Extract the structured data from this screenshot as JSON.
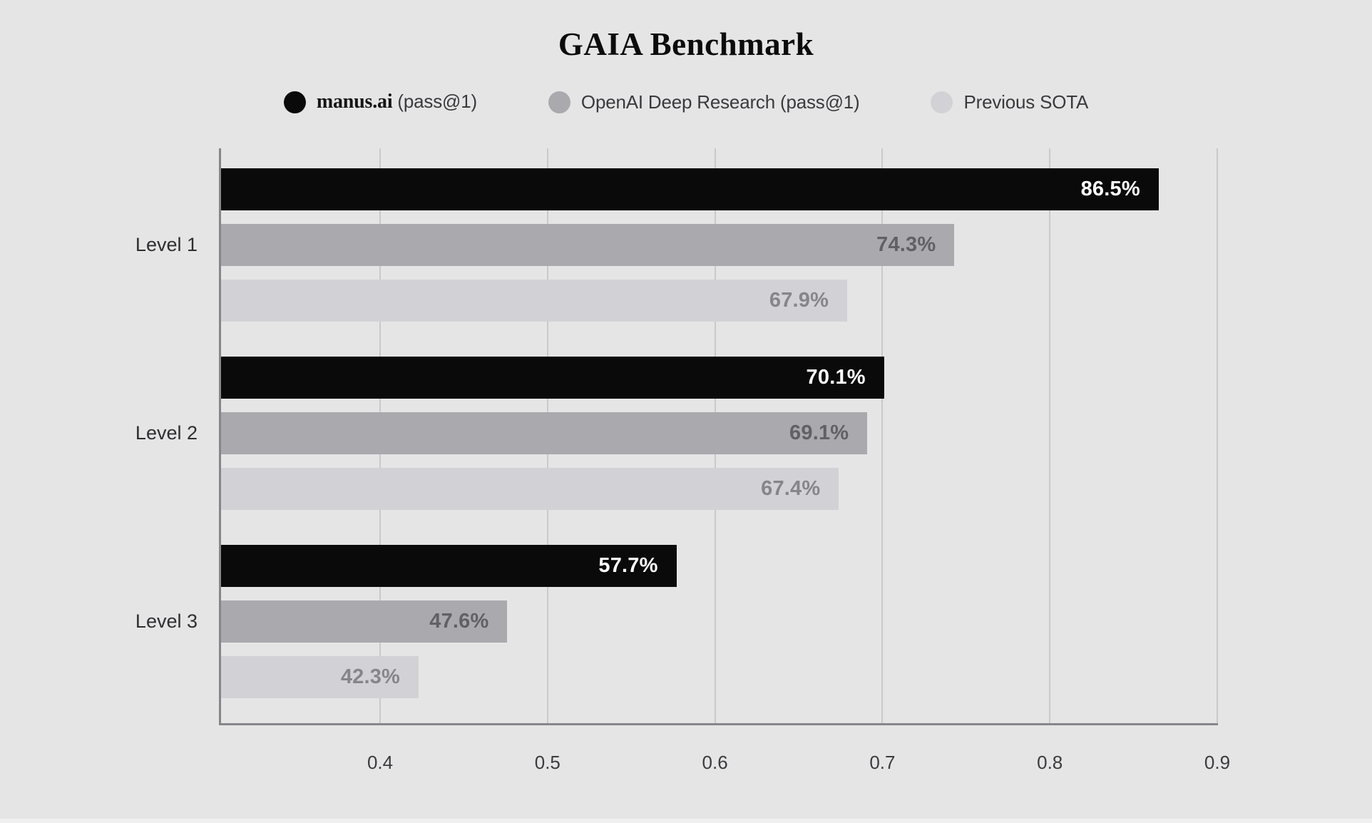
{
  "chart_data": {
    "type": "bar",
    "orientation": "horizontal",
    "title": "GAIA Benchmark",
    "categories": [
      "Level 1",
      "Level 2",
      "Level 3"
    ],
    "series": [
      {
        "name": "manus.ai (pass@1)",
        "color": "#0a0a0a",
        "label_color": "#ffffff",
        "values": [
          0.865,
          0.701,
          0.577
        ],
        "labels": [
          "86.5%",
          "70.1%",
          "57.7%"
        ]
      },
      {
        "name": "OpenAI Deep Research (pass@1)",
        "color": "#a9a9ae",
        "label_color": "#606065",
        "values": [
          0.743,
          0.691,
          0.476
        ],
        "labels": [
          "74.3%",
          "69.1%",
          "47.6%"
        ]
      },
      {
        "name": "Previous SOTA",
        "color": "#d2d2d6",
        "label_color": "#85858a",
        "values": [
          0.679,
          0.674,
          0.423
        ],
        "labels": [
          "67.9%",
          "67.4%",
          "42.3%"
        ]
      }
    ],
    "x_axis": {
      "min": 0.305,
      "max": 0.9,
      "ticks": [
        0.4,
        0.5,
        0.6,
        0.7,
        0.8,
        0.9
      ],
      "tick_labels": [
        "0.4",
        "0.5",
        "0.6",
        "0.7",
        "0.8",
        "0.9"
      ]
    },
    "grid": true,
    "legend_position": "top"
  },
  "legend": {
    "items": [
      {
        "serif": "manus.ai",
        "rest": " (pass@1)"
      },
      {
        "serif": "",
        "rest": "OpenAI Deep Research (pass@1)"
      },
      {
        "serif": "",
        "rest": "Previous SOTA"
      }
    ]
  }
}
